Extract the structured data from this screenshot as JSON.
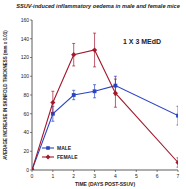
{
  "chart_data": {
    "type": "line",
    "title": "SSUV-induced inflammatory oedema in male and female mice",
    "x_label": "TIME (DAYS POST-SSUV)",
    "y_label": "AVERAGE INCREASE IN SKINFOLD THICKNESS (mm x 0.01)",
    "annotation": "1 X 3 MEdD",
    "x": [
      0,
      1,
      2,
      3,
      4,
      7
    ],
    "series": [
      {
        "name": "MALE",
        "color": "#2b44c4",
        "marker": "square",
        "values": [
          0,
          60,
          80,
          84,
          90,
          58
        ],
        "errors": [
          0,
          8,
          5,
          7,
          10,
          10
        ]
      },
      {
        "name": "FEMALE",
        "color": "#a3182c",
        "marker": "diamond",
        "values": [
          0,
          72,
          123,
          128,
          82,
          8
        ],
        "errors": [
          0,
          12,
          12,
          18,
          15,
          5
        ]
      }
    ],
    "xlim": [
      0,
      7
    ],
    "xticks": [
      0,
      1,
      2,
      3,
      4,
      5,
      6,
      7
    ],
    "ylim": [
      0,
      160
    ],
    "yticks": [
      0,
      20,
      40,
      60,
      80,
      100,
      120,
      140,
      160
    ],
    "legend": "lower left",
    "grid": false
  }
}
